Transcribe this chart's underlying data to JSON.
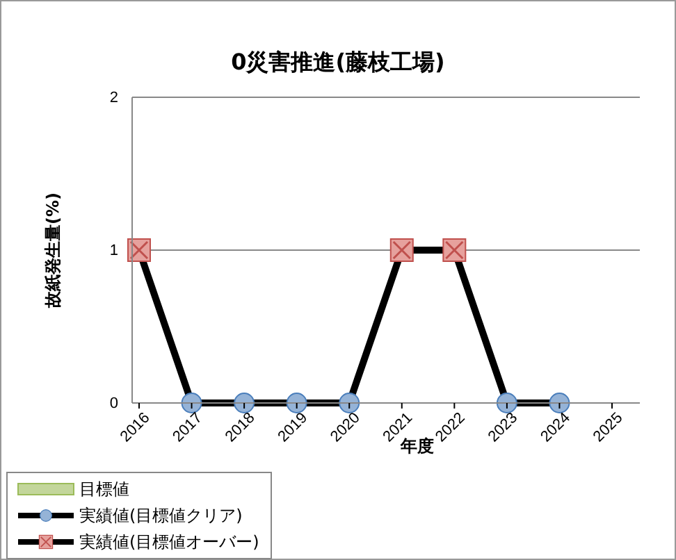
{
  "chart_data": {
    "type": "line",
    "title": "0災害推進(藤枝工場)",
    "xlabel": "年度",
    "ylabel": "故紙発生量(%)",
    "categories": [
      "2016",
      "2017",
      "2018",
      "2019",
      "2020",
      "2021",
      "2022",
      "2023",
      "2024",
      "2025"
    ],
    "ylim": [
      0,
      2
    ],
    "yticks": [
      0,
      1,
      2
    ],
    "grid": "y",
    "legend": "bottom left",
    "series": [
      {
        "name": "目標値",
        "type": "bar",
        "color": "#c3d69b",
        "values": [
          0,
          0,
          0,
          0,
          0,
          0,
          0,
          0,
          0,
          0
        ]
      },
      {
        "color": "#000000",
        "marker": "none",
        "values": [
          1,
          0,
          0,
          0,
          0,
          1,
          1,
          0,
          0,
          null
        ]
      },
      {
        "name": "実績値(目標値クリア)",
        "type": "scatter",
        "marker": "circle",
        "color": "#95b3d7",
        "values": [
          null,
          0,
          0,
          0,
          0,
          null,
          null,
          0,
          0,
          null
        ]
      },
      {
        "name": "実績値(目標値オーバー)",
        "type": "scatter",
        "marker": "square",
        "color": "#e6a19d",
        "values": [
          1,
          null,
          null,
          null,
          null,
          1,
          1,
          null,
          null,
          null
        ]
      }
    ]
  }
}
